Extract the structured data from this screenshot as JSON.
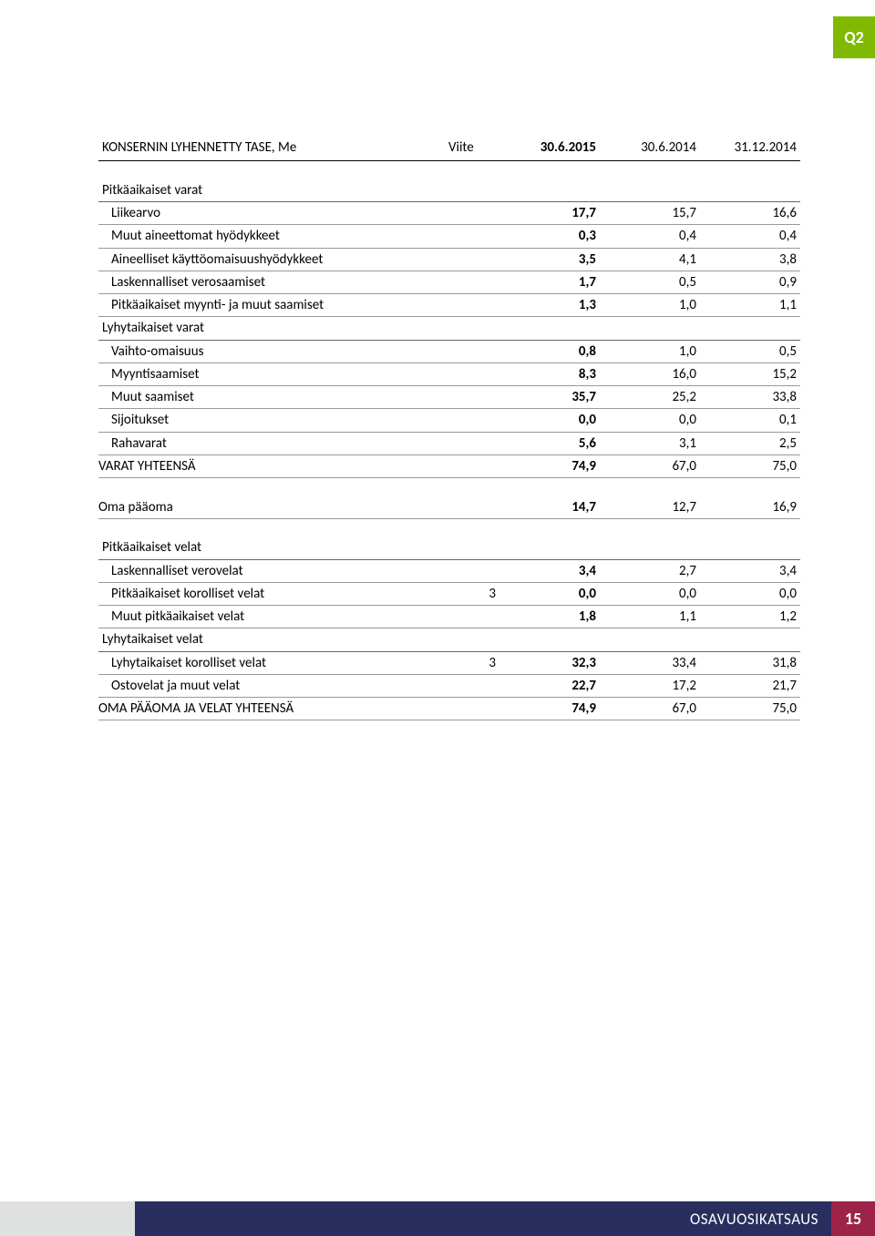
{
  "badge": "Q2",
  "header": {
    "title": "KONSERNIN LYHENNETTY TASE, Me",
    "viite": "Viite",
    "c1": "30.6.2015",
    "c2": "30.6.2014",
    "c3": "31.12.2014"
  },
  "sections": {
    "s1_title": "Pitkäaikaiset varat",
    "s2_title": "Lyhytaikaiset varat",
    "s3_title": "Pitkäaikaiset velat",
    "s4_title": "Lyhytaikaiset velat"
  },
  "rows": {
    "r1": {
      "label": "Liikearvo",
      "v1": "17,7",
      "v2": "15,7",
      "v3": "16,6"
    },
    "r2": {
      "label": "Muut aineettomat hyödykkeet",
      "v1": "0,3",
      "v2": "0,4",
      "v3": "0,4"
    },
    "r3": {
      "label": "Aineelliset käyttöomaisuushyödykkeet",
      "v1": "3,5",
      "v2": "4,1",
      "v3": "3,8"
    },
    "r4": {
      "label": "Laskennalliset verosaamiset",
      "v1": "1,7",
      "v2": "0,5",
      "v3": "0,9"
    },
    "r5": {
      "label": "Pitkäaikaiset myynti- ja muut saamiset",
      "v1": "1,3",
      "v2": "1,0",
      "v3": "1,1"
    },
    "r6": {
      "label": "Vaihto-omaisuus",
      "v1": "0,8",
      "v2": "1,0",
      "v3": "0,5"
    },
    "r7": {
      "label": "Myyntisaamiset",
      "v1": "8,3",
      "v2": "16,0",
      "v3": "15,2"
    },
    "r8": {
      "label": "Muut saamiset",
      "v1": "35,7",
      "v2": "25,2",
      "v3": "33,8"
    },
    "r9": {
      "label": "Sijoitukset",
      "v1": "0,0",
      "v2": "0,0",
      "v3": "0,1"
    },
    "r10": {
      "label": "Rahavarat",
      "v1": "5,6",
      "v2": "3,1",
      "v3": "2,5"
    },
    "total1": {
      "label": "VARAT YHTEENSÄ",
      "v1": "74,9",
      "v2": "67,0",
      "v3": "75,0"
    },
    "equity": {
      "label": "Oma pääoma",
      "v1": "14,7",
      "v2": "12,7",
      "v3": "16,9"
    },
    "r11": {
      "label": "Laskennalliset verovelat",
      "v1": "3,4",
      "v2": "2,7",
      "v3": "3,4"
    },
    "r12": {
      "label": "Pitkäaikaiset korolliset velat",
      "viite": "3",
      "v1": "0,0",
      "v2": "0,0",
      "v3": "0,0"
    },
    "r13": {
      "label": "Muut pitkäaikaiset velat",
      "v1": "1,8",
      "v2": "1,1",
      "v3": "1,2"
    },
    "r14": {
      "label": "Lyhytaikaiset korolliset velat",
      "viite": "3",
      "v1": "32,3",
      "v2": "33,4",
      "v3": "31,8"
    },
    "r15": {
      "label": "Ostovelat ja muut velat",
      "v1": "22,7",
      "v2": "17,2",
      "v3": "21,7"
    },
    "total2": {
      "label": "OMA PÄÄOMA JA VELAT YHTEENSÄ",
      "v1": "74,9",
      "v2": "67,0",
      "v3": "75,0"
    }
  },
  "footer": {
    "text": "OSAVUOSIKATSAUS",
    "page": "15"
  },
  "colors": {
    "badge_bg": "#7fba00",
    "footer_left": "#dfe0e0",
    "footer_mid": "#2a2e5f",
    "footer_right": "#9d2448"
  }
}
